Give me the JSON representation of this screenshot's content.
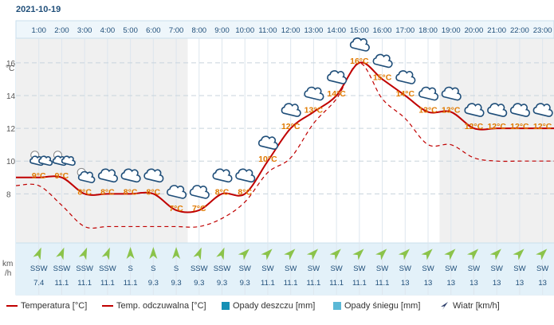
{
  "date": "2021-10-19",
  "y_unit": "°C",
  "wind_unit_line1": "km",
  "wind_unit_line2": "/h",
  "colors": {
    "temperature": "#c00000",
    "feels_like": "#c00000",
    "label": "#e07a00",
    "rain": "#1590b5",
    "snow": "#5bb8d6",
    "wind_arrow_green": "#8bc34a",
    "wind_arrow_navy": "#2c3e6b"
  },
  "legend": {
    "temperature": "Temperatura [°C]",
    "feels_like": "Temp. odczuwalna [°C]",
    "rain": "Opady deszczu [mm]",
    "snow": "Opady śniegu [mm]",
    "wind": "Wiatr [km/h]"
  },
  "chart_data": {
    "type": "line",
    "x": [
      "1:00",
      "2:00",
      "3:00",
      "4:00",
      "5:00",
      "6:00",
      "7:00",
      "8:00",
      "9:00",
      "10:00",
      "11:00",
      "12:00",
      "13:00",
      "14:00",
      "15:00",
      "16:00",
      "17:00",
      "18:00",
      "19:00",
      "20:00",
      "21:00",
      "22:00",
      "23:00"
    ],
    "ylim": [
      5,
      17.5
    ],
    "yticks": [
      8,
      10,
      12,
      14,
      16
    ],
    "series": [
      {
        "name": "Temperatura [°C]",
        "style": "solid",
        "values": [
          9,
          9,
          8,
          8,
          8,
          8,
          7,
          7,
          8,
          8,
          10,
          12,
          13,
          14,
          16,
          15,
          14,
          13,
          13,
          12,
          12,
          12,
          12
        ]
      },
      {
        "name": "Temp. odczuwalna [°C]",
        "style": "dashed",
        "values": [
          8.5,
          7.3,
          6,
          6,
          6,
          6,
          6,
          6,
          6.5,
          7.5,
          9.3,
          10.2,
          12.3,
          13.8,
          16,
          13.8,
          12.6,
          11,
          11,
          10.2,
          10,
          10,
          10
        ]
      }
    ],
    "temp_labels": [
      "9°C",
      "9°C",
      "8°C",
      "8°C",
      "8°C",
      "8°C",
      "7°C",
      "7°C",
      "8°C",
      "8°C",
      "10°C",
      "12°C",
      "13°C",
      "14°C",
      "16°C",
      "15°C",
      "14°C",
      "13°C",
      "13°C",
      "12°C",
      "12°C",
      "12°C",
      "12°C"
    ],
    "weather_icons": [
      "night-partly-cloudy-icon",
      "night-partly-cloudy-icon",
      "night-cloudy-icon",
      "cloud-icon",
      "cloud-icon",
      "cloud-icon",
      "cloud-icon",
      "cloud-icon",
      "cloud-icon",
      "cloud-icon",
      "cloud-icon",
      "cloud-icon",
      "cloud-icon",
      "cloud-icon",
      "cloud-icon",
      "cloud-icon",
      "cloud-icon",
      "cloud-icon",
      "cloud-icon",
      "cloud-icon",
      "cloud-icon",
      "cloud-icon",
      "cloud-icon"
    ],
    "wind_dir": [
      "SSW",
      "SSW",
      "SSW",
      "SSW",
      "S",
      "S",
      "S",
      "SSW",
      "SSW",
      "SW",
      "SW",
      "SW",
      "SW",
      "SW",
      "SW",
      "SW",
      "SW",
      "SW",
      "SW",
      "SW",
      "SW",
      "SW",
      "SW"
    ],
    "wind_speed": [
      "7.4",
      "11.1",
      "11.1",
      "11.1",
      "11.1",
      "9.3",
      "9.3",
      "9.3",
      "9.3",
      "9.3",
      "11.1",
      "11.1",
      "11.1",
      "11.1",
      "11.1",
      "11.1",
      "13",
      "13",
      "13",
      "13",
      "13",
      "13",
      "13"
    ]
  }
}
